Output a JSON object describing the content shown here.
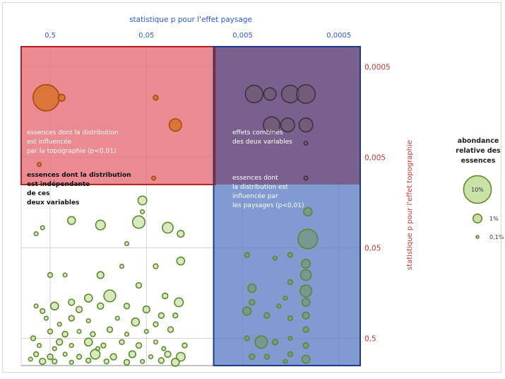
{
  "chart_data": {
    "type": "scatter",
    "title": "",
    "top_axis": {
      "label": "statistique p pour l'effet paysage",
      "color": "#2a5bd7",
      "ticks": [
        "0,5",
        "0,05",
        "0,005",
        "0,0005"
      ],
      "scale": "log-reciprocal",
      "range": [
        1,
        0.0003
      ]
    },
    "right_axis": {
      "label": "statistique p pour l'effet topographie",
      "color": "#c0392b",
      "ticks": [
        "0,0005",
        "0,005",
        "0,05",
        "0,5"
      ],
      "scale": "log-reciprocal",
      "range": [
        0.0003,
        1
      ]
    },
    "grid": true,
    "regions": [
      {
        "name": "topography",
        "color": "#e8707a",
        "border": "#b22222",
        "label": "essences dont la distribution\nest influencée\npar la topographie (p<0,01)",
        "label_color": "#ffffff"
      },
      {
        "name": "landscape",
        "color": "#5b7fc4",
        "border": "#1f3a8a",
        "label": "essences dont\nla distribution est\ninfluencée par\nles paysages (p<0,01)",
        "label_color": "#ffffff"
      },
      {
        "name": "combined",
        "label": "effets combinés\ndes deux variables",
        "label_color": "#ffffff"
      },
      {
        "name": "independent",
        "label": "essences dont la distribution\nest indépendante\nde ces\ndeux variables",
        "label_color": "#111111"
      }
    ],
    "legend": {
      "title": "abondance\nrelative des\nessences",
      "items": [
        {
          "label": "10%",
          "abundance": 0.1
        },
        {
          "label": "1%",
          "abundance": 0.01
        },
        {
          "label": "0,1%",
          "abundance": 0.001
        }
      ],
      "placement": "right"
    },
    "marker_colors": {
      "topography_fill": "#d9722f",
      "topography_edge": "#a34a12",
      "combined_fill": "#6b5a6a",
      "combined_edge": "#3f3040",
      "other_fill": "#b8d78a",
      "other_edge": "#5b8a2a"
    },
    "points": [
      {
        "x": 0.55,
        "y": 0.0011,
        "s": 0.09
      },
      {
        "x": 0.38,
        "y": 0.0011,
        "s": 0.006
      },
      {
        "x": 0.04,
        "y": 0.0011,
        "s": 0.003
      },
      {
        "x": 0.025,
        "y": 0.0022,
        "s": 0.02
      },
      {
        "x": 0.055,
        "y": 0.015,
        "s": 0.01
      },
      {
        "x": 0.042,
        "y": 0.0085,
        "s": 0.002
      },
      {
        "x": 0.65,
        "y": 0.006,
        "s": 0.002
      },
      {
        "x": 0.0038,
        "y": 0.001,
        "s": 0.04
      },
      {
        "x": 0.0026,
        "y": 0.001,
        "s": 0.02
      },
      {
        "x": 0.0016,
        "y": 0.001,
        "s": 0.04
      },
      {
        "x": 0.0011,
        "y": 0.001,
        "s": 0.045
      },
      {
        "x": 0.0025,
        "y": 0.0022,
        "s": 0.035
      },
      {
        "x": 0.0017,
        "y": 0.0022,
        "s": 0.025
      },
      {
        "x": 0.0011,
        "y": 0.0022,
        "s": 0.025
      },
      {
        "x": 0.0011,
        "y": 0.0035,
        "s": 0.002
      },
      {
        "x": 0.0011,
        "y": 0.0085,
        "s": 0.002
      },
      {
        "x": 0.00105,
        "y": 0.02,
        "s": 0.009
      },
      {
        "x": 0.00105,
        "y": 0.04,
        "s": 0.05
      },
      {
        "x": 0.0016,
        "y": 0.06,
        "s": 0.003
      },
      {
        "x": 0.0023,
        "y": 0.065,
        "s": 0.002
      },
      {
        "x": 0.0045,
        "y": 0.06,
        "s": 0.003
      },
      {
        "x": 0.0016,
        "y": 0.12,
        "s": 0.003
      },
      {
        "x": 0.0011,
        "y": 0.075,
        "s": 0.01
      },
      {
        "x": 0.0011,
        "y": 0.1,
        "s": 0.015
      },
      {
        "x": 0.0011,
        "y": 0.15,
        "s": 0.018
      },
      {
        "x": 0.0011,
        "y": 0.2,
        "s": 0.008
      },
      {
        "x": 0.0011,
        "y": 0.28,
        "s": 0.006
      },
      {
        "x": 0.0011,
        "y": 0.4,
        "s": 0.004
      },
      {
        "x": 0.0011,
        "y": 0.6,
        "s": 0.004
      },
      {
        "x": 0.0011,
        "y": 0.85,
        "s": 0.008
      },
      {
        "x": 0.004,
        "y": 0.14,
        "s": 0.009
      },
      {
        "x": 0.004,
        "y": 0.2,
        "s": 0.004
      },
      {
        "x": 0.0045,
        "y": 0.25,
        "s": 0.009
      },
      {
        "x": 0.0028,
        "y": 0.28,
        "s": 0.004
      },
      {
        "x": 0.0021,
        "y": 0.22,
        "s": 0.002
      },
      {
        "x": 0.0018,
        "y": 0.18,
        "s": 0.002
      },
      {
        "x": 0.0016,
        "y": 0.3,
        "s": 0.003
      },
      {
        "x": 0.0016,
        "y": 0.5,
        "s": 0.002
      },
      {
        "x": 0.0016,
        "y": 0.75,
        "s": 0.003
      },
      {
        "x": 0.0032,
        "y": 0.55,
        "s": 0.02
      },
      {
        "x": 0.0023,
        "y": 0.55,
        "s": 0.004
      },
      {
        "x": 0.0045,
        "y": 0.5,
        "s": 0.003
      },
      {
        "x": 0.004,
        "y": 0.8,
        "s": 0.004
      },
      {
        "x": 0.0028,
        "y": 0.8,
        "s": 0.003
      },
      {
        "x": 0.0018,
        "y": 0.9,
        "s": 0.002
      },
      {
        "x": 0.3,
        "y": 0.025,
        "s": 0.008
      },
      {
        "x": 0.15,
        "y": 0.028,
        "s": 0.012
      },
      {
        "x": 0.06,
        "y": 0.026,
        "s": 0.02
      },
      {
        "x": 0.03,
        "y": 0.03,
        "s": 0.015
      },
      {
        "x": 0.022,
        "y": 0.035,
        "s": 0.006
      },
      {
        "x": 0.055,
        "y": 0.02,
        "s": 0.002
      },
      {
        "x": 0.08,
        "y": 0.045,
        "s": 0.002
      },
      {
        "x": 0.7,
        "y": 0.035,
        "s": 0.002
      },
      {
        "x": 0.6,
        "y": 0.03,
        "s": 0.002
      },
      {
        "x": 0.09,
        "y": 0.08,
        "s": 0.002
      },
      {
        "x": 0.04,
        "y": 0.08,
        "s": 0.003
      },
      {
        "x": 0.022,
        "y": 0.07,
        "s": 0.008
      },
      {
        "x": 0.15,
        "y": 0.1,
        "s": 0.006
      },
      {
        "x": 0.5,
        "y": 0.1,
        "s": 0.003
      },
      {
        "x": 0.35,
        "y": 0.1,
        "s": 0.002
      },
      {
        "x": 0.2,
        "y": 0.18,
        "s": 0.008
      },
      {
        "x": 0.12,
        "y": 0.17,
        "s": 0.018
      },
      {
        "x": 0.06,
        "y": 0.13,
        "s": 0.004
      },
      {
        "x": 0.032,
        "y": 0.17,
        "s": 0.004
      },
      {
        "x": 0.023,
        "y": 0.2,
        "s": 0.01
      },
      {
        "x": 0.45,
        "y": 0.22,
        "s": 0.008
      },
      {
        "x": 0.6,
        "y": 0.25,
        "s": 0.003
      },
      {
        "x": 0.7,
        "y": 0.22,
        "s": 0.002
      },
      {
        "x": 0.3,
        "y": 0.2,
        "s": 0.005
      },
      {
        "x": 0.25,
        "y": 0.24,
        "s": 0.005
      },
      {
        "x": 0.15,
        "y": 0.22,
        "s": 0.005
      },
      {
        "x": 0.08,
        "y": 0.22,
        "s": 0.004
      },
      {
        "x": 0.05,
        "y": 0.24,
        "s": 0.006
      },
      {
        "x": 0.035,
        "y": 0.28,
        "s": 0.004
      },
      {
        "x": 0.025,
        "y": 0.28,
        "s": 0.003
      },
      {
        "x": 0.55,
        "y": 0.3,
        "s": 0.002
      },
      {
        "x": 0.4,
        "y": 0.35,
        "s": 0.002
      },
      {
        "x": 0.3,
        "y": 0.3,
        "s": 0.004
      },
      {
        "x": 0.2,
        "y": 0.32,
        "s": 0.002
      },
      {
        "x": 0.1,
        "y": 0.3,
        "s": 0.002
      },
      {
        "x": 0.065,
        "y": 0.33,
        "s": 0.008
      },
      {
        "x": 0.04,
        "y": 0.35,
        "s": 0.003
      },
      {
        "x": 0.5,
        "y": 0.42,
        "s": 0.003
      },
      {
        "x": 0.35,
        "y": 0.45,
        "s": 0.004
      },
      {
        "x": 0.25,
        "y": 0.42,
        "s": 0.002
      },
      {
        "x": 0.18,
        "y": 0.45,
        "s": 0.003
      },
      {
        "x": 0.12,
        "y": 0.4,
        "s": 0.004
      },
      {
        "x": 0.08,
        "y": 0.45,
        "s": 0.002
      },
      {
        "x": 0.05,
        "y": 0.42,
        "s": 0.002
      },
      {
        "x": 0.028,
        "y": 0.4,
        "s": 0.004
      },
      {
        "x": 0.4,
        "y": 0.55,
        "s": 0.005
      },
      {
        "x": 0.3,
        "y": 0.6,
        "s": 0.002
      },
      {
        "x": 0.2,
        "y": 0.55,
        "s": 0.008
      },
      {
        "x": 0.14,
        "y": 0.6,
        "s": 0.003
      },
      {
        "x": 0.09,
        "y": 0.55,
        "s": 0.003
      },
      {
        "x": 0.06,
        "y": 0.6,
        "s": 0.004
      },
      {
        "x": 0.04,
        "y": 0.55,
        "s": 0.002
      },
      {
        "x": 0.02,
        "y": 0.6,
        "s": 0.003
      },
      {
        "x": 0.7,
        "y": 0.75,
        "s": 0.003
      },
      {
        "x": 0.5,
        "y": 0.8,
        "s": 0.004
      },
      {
        "x": 0.35,
        "y": 0.75,
        "s": 0.002
      },
      {
        "x": 0.25,
        "y": 0.8,
        "s": 0.003
      },
      {
        "x": 0.17,
        "y": 0.75,
        "s": 0.012
      },
      {
        "x": 0.11,
        "y": 0.8,
        "s": 0.005
      },
      {
        "x": 0.07,
        "y": 0.75,
        "s": 0.006
      },
      {
        "x": 0.045,
        "y": 0.8,
        "s": 0.002
      },
      {
        "x": 0.03,
        "y": 0.75,
        "s": 0.005
      },
      {
        "x": 0.022,
        "y": 0.8,
        "s": 0.01
      },
      {
        "x": 0.6,
        "y": 0.9,
        "s": 0.005
      },
      {
        "x": 0.45,
        "y": 0.9,
        "s": 0.003
      },
      {
        "x": 0.3,
        "y": 0.92,
        "s": 0.002
      },
      {
        "x": 0.2,
        "y": 0.88,
        "s": 0.003
      },
      {
        "x": 0.13,
        "y": 0.9,
        "s": 0.003
      },
      {
        "x": 0.08,
        "y": 0.92,
        "s": 0.004
      },
      {
        "x": 0.055,
        "y": 0.9,
        "s": 0.002
      },
      {
        "x": 0.035,
        "y": 0.88,
        "s": 0.004
      },
      {
        "x": 0.025,
        "y": 0.92,
        "s": 0.008
      },
      {
        "x": 0.75,
        "y": 0.5,
        "s": 0.003
      },
      {
        "x": 0.8,
        "y": 0.85,
        "s": 0.002
      },
      {
        "x": 0.65,
        "y": 0.6,
        "s": 0.002
      },
      {
        "x": 0.45,
        "y": 0.65,
        "s": 0.002
      },
      {
        "x": 0.16,
        "y": 0.65,
        "s": 0.002
      },
      {
        "x": 0.033,
        "y": 0.65,
        "s": 0.002
      }
    ]
  }
}
